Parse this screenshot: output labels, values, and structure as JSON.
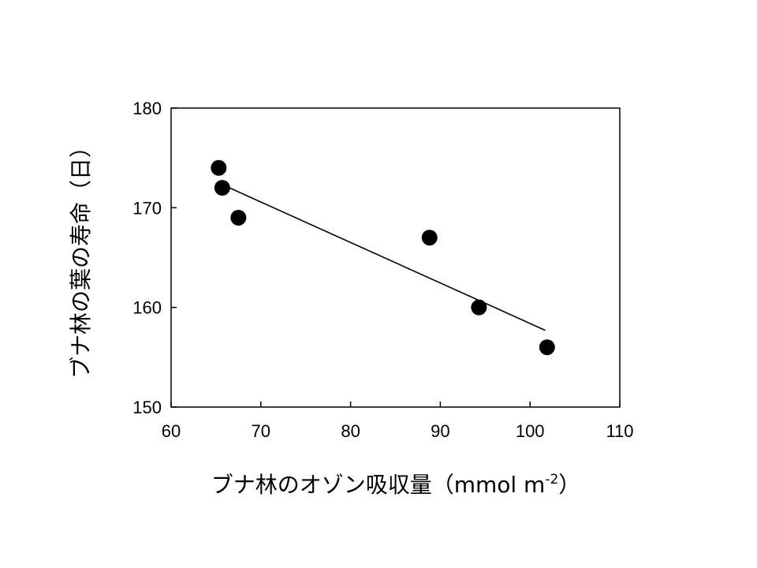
{
  "chart_data": {
    "type": "scatter",
    "xlabel": "ブナ林のオゾン吸収量（mmol m",
    "xlabel_sup": "-2",
    "xlabel_end": "）",
    "ylabel": "ブナ林の葉の寿命（日）",
    "xlim": [
      60,
      110
    ],
    "ylim": [
      150,
      180
    ],
    "x_ticks": [
      60,
      70,
      80,
      90,
      100,
      110
    ],
    "y_ticks": [
      150,
      160,
      170,
      180
    ],
    "grid": false,
    "points": [
      {
        "x": 65.3,
        "y": 174
      },
      {
        "x": 65.7,
        "y": 172
      },
      {
        "x": 67.5,
        "y": 169
      },
      {
        "x": 88.8,
        "y": 167
      },
      {
        "x": 94.3,
        "y": 160
      },
      {
        "x": 101.9,
        "y": 156
      }
    ],
    "trendline": {
      "x": [
        66.0,
        101.7
      ],
      "y": [
        172.2,
        157.7
      ]
    },
    "colors": {
      "marker": "#000000",
      "line": "#000000",
      "axis": "#000000"
    }
  }
}
